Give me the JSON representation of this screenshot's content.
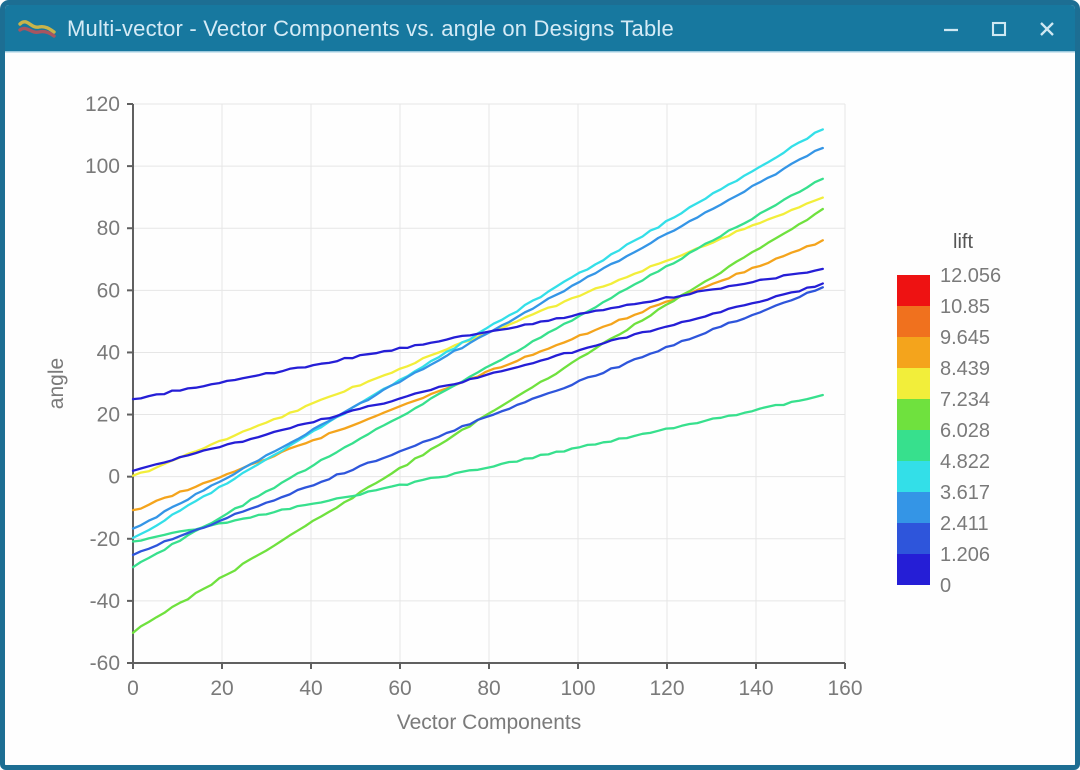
{
  "window": {
    "title": "Multi-vector - Vector Components vs. angle on Designs Table",
    "titlebar_color": "#17789f",
    "border_color": "#1d6e93",
    "title_text_color": "#d5ebf6",
    "app_icon": "multi-vector-wave-icon",
    "controls": [
      {
        "name": "minimize",
        "icon": "minus-icon"
      },
      {
        "name": "maximize",
        "icon": "square-outline-icon"
      },
      {
        "name": "close",
        "icon": "x-icon"
      }
    ]
  },
  "chart_data": {
    "type": "line",
    "title": "",
    "xlabel": "Vector Components",
    "ylabel": "angle",
    "xlim": [
      0,
      160
    ],
    "ylim": [
      -60,
      120
    ],
    "xticks": [
      0,
      20,
      40,
      60,
      80,
      100,
      120,
      140,
      160
    ],
    "yticks": [
      -60,
      -40,
      -20,
      0,
      20,
      40,
      60,
      80,
      100,
      120
    ],
    "grid": true,
    "x_range_of_lines": [
      0,
      155
    ],
    "series": [
      {
        "name": "line-yellow",
        "color": "#f2ee3a",
        "x": [
          0,
          155
        ],
        "y": [
          0,
          90
        ]
      },
      {
        "name": "line-amber",
        "color": "#f4a41c",
        "x": [
          0,
          155
        ],
        "y": [
          -11,
          76
        ]
      },
      {
        "name": "line-light-green",
        "color": "#6fe13e",
        "x": [
          0,
          155
        ],
        "y": [
          -50,
          86
        ]
      },
      {
        "name": "line-spring-green",
        "color": "#37e08d",
        "x": [
          0,
          155
        ],
        "y": [
          -29,
          96
        ]
      },
      {
        "name": "line-spring-green-shallow",
        "color": "#37e08d",
        "x": [
          0,
          155
        ],
        "y": [
          -21,
          26
        ]
      },
      {
        "name": "line-cyan",
        "color": "#33dfe8",
        "x": [
          0,
          155
        ],
        "y": [
          -20,
          112
        ]
      },
      {
        "name": "line-azure",
        "color": "#3495e6",
        "x": [
          0,
          155
        ],
        "y": [
          -17,
          106
        ]
      },
      {
        "name": "line-royal-blue",
        "color": "#2e55db",
        "x": [
          0,
          155
        ],
        "y": [
          -25,
          61
        ]
      },
      {
        "name": "line-navy-steep",
        "color": "#251ed6",
        "x": [
          0,
          155
        ],
        "y": [
          2,
          62
        ]
      },
      {
        "name": "line-navy-shallow",
        "color": "#251ed6",
        "x": [
          0,
          155
        ],
        "y": [
          25,
          67
        ]
      }
    ],
    "legend_position": "right"
  },
  "legend": {
    "title": "lift",
    "labels": [
      "12.056",
      "10.85",
      "9.645",
      "8.439",
      "7.234",
      "6.028",
      "4.822",
      "3.617",
      "2.411",
      "1.206",
      "0"
    ],
    "colors": [
      "#ee1212",
      "#f0711e",
      "#f4a41c",
      "#f2ee3a",
      "#6fe13e",
      "#37e08d",
      "#33dfe8",
      "#3495e6",
      "#2e55db",
      "#251ed6"
    ]
  },
  "style": {
    "axis_color": "#606060",
    "grid_color": "#e6e6e6",
    "tick_label_color": "#7a7a7a",
    "axis_label_color": "#7a7a7a",
    "legend_label_color": "#7a7a7a",
    "legend_title_color": "#555555"
  }
}
